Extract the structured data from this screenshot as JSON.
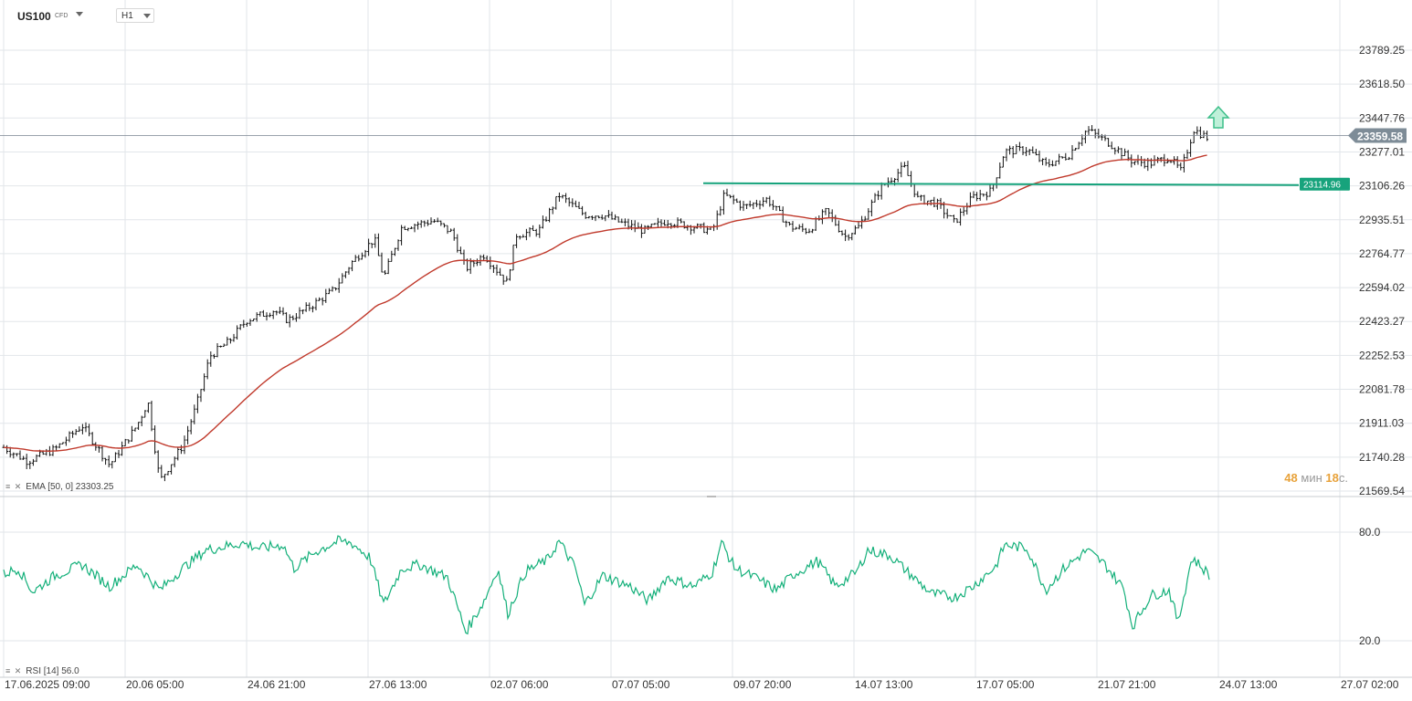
{
  "toolbar": {
    "symbol": "US100",
    "symbol_sub": "CFD",
    "timeframe": "H1"
  },
  "legends": {
    "ema": {
      "icons": "≡ ✕",
      "text": "EMA [50, 0] 23303.25"
    },
    "rsi": {
      "icons": "≡ ✕",
      "text": "RSI [14] 56.0"
    }
  },
  "timer": {
    "minutes": "48",
    "min_unit": "мин",
    "seconds": "18",
    "sec_unit": "с."
  },
  "colors": {
    "candle": "#111111",
    "ema": "#c0392b",
    "rsi": "#14b07a",
    "level": "#17a37c",
    "current_price_tag": "#7e8c97",
    "level_tag": "#17a37c",
    "arrow": "#3dbf8a",
    "grid": "#e2e6ea"
  },
  "chart_data": [
    {
      "type": "ohlc",
      "name": "US100 CFD H1",
      "x_labels": [
        "17.06.2025  09:00",
        "20.06  05:00",
        "24.06  21:00",
        "27.06  13:00",
        "02.07  06:00",
        "07.07  05:00",
        "09.07  20:00",
        "14.07  13:00",
        "17.07  05:00",
        "21.07  21:00",
        "24.07  13:00",
        "27.07  02:00"
      ],
      "y_labels": [
        "23789.25",
        "23618.50",
        "23447.76",
        "23277.01",
        "23106.26",
        "22935.51",
        "22764.77",
        "22594.02",
        "22423.27",
        "22252.53",
        "22081.78",
        "21911.03",
        "21740.28",
        "21569.54"
      ],
      "ylim": [
        21569.54,
        23789.25
      ],
      "current_price": "23359.58",
      "horizontal_level": "23114.96",
      "ema_period": 50,
      "ema_last": 23303.25,
      "close_path": [
        [
          0,
          21800
        ],
        [
          30,
          21720
        ],
        [
          60,
          21780
        ],
        [
          90,
          21900
        ],
        [
          120,
          21700
        ],
        [
          150,
          21900
        ],
        [
          162,
          22020
        ],
        [
          175,
          21620
        ],
        [
          200,
          21800
        ],
        [
          215,
          22000
        ],
        [
          230,
          22250
        ],
        [
          250,
          22320
        ],
        [
          270,
          22430
        ],
        [
          300,
          22480
        ],
        [
          315,
          22430
        ],
        [
          340,
          22500
        ],
        [
          365,
          22580
        ],
        [
          385,
          22720
        ],
        [
          410,
          22840
        ],
        [
          420,
          22640
        ],
        [
          440,
          22900
        ],
        [
          475,
          22930
        ],
        [
          495,
          22870
        ],
        [
          510,
          22690
        ],
        [
          530,
          22760
        ],
        [
          555,
          22620
        ],
        [
          565,
          22860
        ],
        [
          590,
          22880
        ],
        [
          612,
          23060
        ],
        [
          640,
          22960
        ],
        [
          660,
          22960
        ],
        [
          680,
          22920
        ],
        [
          705,
          22880
        ],
        [
          730,
          22930
        ],
        [
          760,
          22900
        ],
        [
          780,
          22880
        ],
        [
          793,
          23060
        ],
        [
          815,
          23000
        ],
        [
          840,
          23040
        ],
        [
          865,
          22900
        ],
        [
          885,
          22880
        ],
        [
          905,
          22980
        ],
        [
          925,
          22850
        ],
        [
          940,
          22900
        ],
        [
          965,
          23100
        ],
        [
          990,
          23200
        ],
        [
          1005,
          23040
        ],
        [
          1025,
          23020
        ],
        [
          1045,
          22920
        ],
        [
          1065,
          23050
        ],
        [
          1085,
          23080
        ],
        [
          1100,
          23280
        ],
        [
          1125,
          23290
        ],
        [
          1145,
          23210
        ],
        [
          1170,
          23260
        ],
        [
          1190,
          23390
        ],
        [
          1215,
          23320
        ],
        [
          1240,
          23230
        ],
        [
          1260,
          23220
        ],
        [
          1280,
          23250
        ],
        [
          1293,
          23180
        ],
        [
          1307,
          23390
        ],
        [
          1325,
          23340
        ]
      ]
    },
    {
      "type": "line",
      "name": "RSI [14]",
      "y_labels": [
        "80.0",
        "20.0"
      ],
      "ylim": [
        20,
        80
      ],
      "values_path": [
        [
          0,
          56
        ],
        [
          20,
          60
        ],
        [
          36,
          47
        ],
        [
          60,
          56
        ],
        [
          90,
          62
        ],
        [
          120,
          50
        ],
        [
          150,
          62
        ],
        [
          175,
          48
        ],
        [
          200,
          60
        ],
        [
          225,
          70
        ],
        [
          245,
          72
        ],
        [
          265,
          74
        ],
        [
          285,
          71
        ],
        [
          310,
          73
        ],
        [
          322,
          60
        ],
        [
          345,
          69
        ],
        [
          370,
          75
        ],
        [
          385,
          74
        ],
        [
          405,
          66
        ],
        [
          420,
          40
        ],
        [
          440,
          60
        ],
        [
          460,
          62
        ],
        [
          490,
          55
        ],
        [
          510,
          25
        ],
        [
          530,
          42
        ],
        [
          545,
          60
        ],
        [
          556,
          35
        ],
        [
          575,
          58
        ],
        [
          600,
          65
        ],
        [
          612,
          75
        ],
        [
          630,
          60
        ],
        [
          640,
          40
        ],
        [
          660,
          56
        ],
        [
          690,
          50
        ],
        [
          710,
          42
        ],
        [
          730,
          55
        ],
        [
          760,
          50
        ],
        [
          780,
          58
        ],
        [
          790,
          74
        ],
        [
          805,
          60
        ],
        [
          830,
          54
        ],
        [
          850,
          48
        ],
        [
          870,
          57
        ],
        [
          895,
          64
        ],
        [
          915,
          50
        ],
        [
          938,
          58
        ],
        [
          950,
          70
        ],
        [
          975,
          67
        ],
        [
          1000,
          55
        ],
        [
          1020,
          46
        ],
        [
          1045,
          44
        ],
        [
          1065,
          50
        ],
        [
          1090,
          61
        ],
        [
          1100,
          73
        ],
        [
          1125,
          71
        ],
        [
          1145,
          48
        ],
        [
          1165,
          60
        ],
        [
          1190,
          70
        ],
        [
          1210,
          62
        ],
        [
          1230,
          49
        ],
        [
          1240,
          28
        ],
        [
          1260,
          45
        ],
        [
          1280,
          48
        ],
        [
          1290,
          30
        ],
        [
          1305,
          66
        ],
        [
          1325,
          56
        ]
      ]
    }
  ]
}
